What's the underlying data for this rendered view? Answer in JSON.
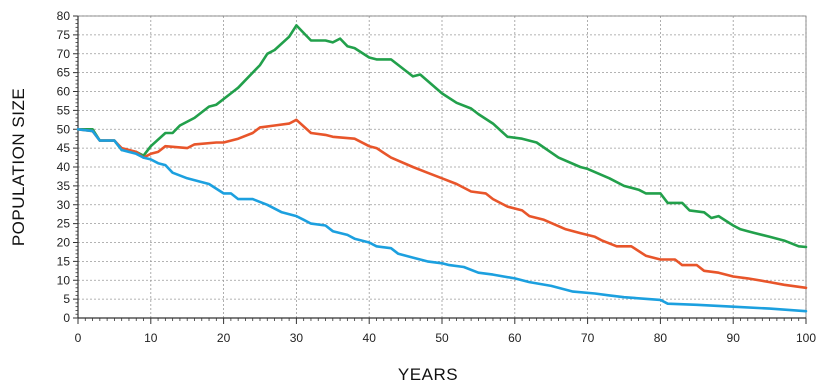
{
  "chart_data": {
    "type": "line",
    "title": "",
    "xlabel": "YEARS",
    "ylabel": "POPULATION SIZE",
    "xlim": [
      0,
      100
    ],
    "ylim": [
      0,
      80
    ],
    "grid": true,
    "x_ticks": [
      0,
      10,
      20,
      30,
      40,
      50,
      60,
      70,
      80,
      90,
      100
    ],
    "y_ticks": [
      0,
      5,
      10,
      15,
      20,
      25,
      30,
      35,
      40,
      45,
      50,
      55,
      60,
      65,
      70,
      75,
      80
    ],
    "x_tick_labels": [
      "0",
      "10",
      "20",
      "30",
      "40",
      "50",
      "60",
      "70",
      "80",
      "90",
      "100"
    ],
    "y_tick_labels": [
      "0",
      "5",
      "10",
      "15",
      "20",
      "25",
      "30",
      "35",
      "40",
      "45",
      "50",
      "55",
      "60",
      "65",
      "70",
      "75",
      "80"
    ],
    "series": [
      {
        "color": "#22a04b",
        "points": [
          [
            0,
            50
          ],
          [
            2,
            50
          ],
          [
            3,
            47
          ],
          [
            5,
            47
          ],
          [
            6,
            44.5
          ],
          [
            8,
            44
          ],
          [
            9,
            43
          ],
          [
            10,
            45.5
          ],
          [
            12,
            49
          ],
          [
            13,
            49
          ],
          [
            14,
            51
          ],
          [
            16,
            53
          ],
          [
            18,
            56
          ],
          [
            19,
            56.5
          ],
          [
            21,
            59.5
          ],
          [
            22,
            61
          ],
          [
            23,
            63
          ],
          [
            25,
            67
          ],
          [
            26,
            70
          ],
          [
            27,
            71
          ],
          [
            29,
            74.5
          ],
          [
            30,
            77.5
          ],
          [
            31,
            75.5
          ],
          [
            32,
            73.5
          ],
          [
            34,
            73.5
          ],
          [
            35,
            73
          ],
          [
            36,
            74
          ],
          [
            37,
            72
          ],
          [
            38,
            71.5
          ],
          [
            40,
            69
          ],
          [
            41,
            68.5
          ],
          [
            43,
            68.5
          ],
          [
            46,
            64
          ],
          [
            47,
            64.5
          ],
          [
            50,
            59.5
          ],
          [
            52,
            57
          ],
          [
            54,
            55.5
          ],
          [
            55,
            54
          ],
          [
            57,
            51.5
          ],
          [
            59,
            48
          ],
          [
            61,
            47.5
          ],
          [
            63,
            46.5
          ],
          [
            66,
            42.5
          ],
          [
            69,
            40
          ],
          [
            70,
            39.5
          ],
          [
            73,
            37
          ],
          [
            75,
            35
          ],
          [
            77,
            34
          ],
          [
            78,
            33
          ],
          [
            80,
            33
          ],
          [
            81,
            30.5
          ],
          [
            83,
            30.5
          ],
          [
            84,
            28.5
          ],
          [
            86,
            28
          ],
          [
            87,
            26.5
          ],
          [
            88,
            27
          ],
          [
            90,
            24.5
          ],
          [
            91,
            23.5
          ],
          [
            92,
            23
          ],
          [
            93,
            22.5
          ],
          [
            95,
            21.5
          ],
          [
            97,
            20.5
          ],
          [
            99,
            19
          ],
          [
            100,
            18.8
          ]
        ]
      },
      {
        "color": "#e8552a",
        "points": [
          [
            0,
            50
          ],
          [
            2,
            49.5
          ],
          [
            3,
            47
          ],
          [
            5,
            47
          ],
          [
            6,
            45
          ],
          [
            8,
            44
          ],
          [
            9,
            42.5
          ],
          [
            10,
            43.5
          ],
          [
            11,
            44
          ],
          [
            12,
            45.5
          ],
          [
            15,
            45
          ],
          [
            16,
            46
          ],
          [
            19,
            46.5
          ],
          [
            20,
            46.5
          ],
          [
            22,
            47.5
          ],
          [
            24,
            49
          ],
          [
            25,
            50.5
          ],
          [
            27,
            51
          ],
          [
            29,
            51.5
          ],
          [
            30,
            52.5
          ],
          [
            32,
            49
          ],
          [
            34,
            48.5
          ],
          [
            35,
            48
          ],
          [
            38,
            47.5
          ],
          [
            40,
            45.5
          ],
          [
            41,
            45
          ],
          [
            43,
            42.5
          ],
          [
            46,
            40
          ],
          [
            48,
            38.5
          ],
          [
            50,
            37
          ],
          [
            52,
            35.5
          ],
          [
            54,
            33.5
          ],
          [
            56,
            33
          ],
          [
            57,
            31.5
          ],
          [
            59,
            29.5
          ],
          [
            61,
            28.5
          ],
          [
            62,
            27
          ],
          [
            64,
            26
          ],
          [
            67,
            23.5
          ],
          [
            69,
            22.5
          ],
          [
            71,
            21.5
          ],
          [
            72,
            20.5
          ],
          [
            74,
            19
          ],
          [
            76,
            19
          ],
          [
            78,
            16.5
          ],
          [
            80,
            15.5
          ],
          [
            82,
            15.5
          ],
          [
            83,
            14
          ],
          [
            85,
            14
          ],
          [
            86,
            12.5
          ],
          [
            88,
            12
          ],
          [
            90,
            11
          ],
          [
            92,
            10.5
          ],
          [
            95,
            9.5
          ],
          [
            97,
            8.8
          ],
          [
            100,
            8
          ]
        ]
      },
      {
        "color": "#1ca0df",
        "points": [
          [
            0,
            50
          ],
          [
            2,
            49.5
          ],
          [
            3,
            47
          ],
          [
            5,
            47
          ],
          [
            6,
            44.5
          ],
          [
            8,
            43.5
          ],
          [
            9,
            42.5
          ],
          [
            10,
            42
          ],
          [
            11,
            41
          ],
          [
            12,
            40.5
          ],
          [
            13,
            38.5
          ],
          [
            15,
            37
          ],
          [
            17,
            36
          ],
          [
            18,
            35.5
          ],
          [
            20,
            33
          ],
          [
            21,
            33
          ],
          [
            22,
            31.5
          ],
          [
            24,
            31.5
          ],
          [
            26,
            30
          ],
          [
            28,
            28
          ],
          [
            30,
            27
          ],
          [
            31,
            26
          ],
          [
            32,
            25
          ],
          [
            34,
            24.5
          ],
          [
            35,
            23
          ],
          [
            37,
            22
          ],
          [
            38,
            21
          ],
          [
            40,
            20
          ],
          [
            41,
            19
          ],
          [
            43,
            18.5
          ],
          [
            44,
            17
          ],
          [
            46,
            16
          ],
          [
            48,
            15
          ],
          [
            50,
            14.5
          ],
          [
            51,
            14
          ],
          [
            53,
            13.5
          ],
          [
            55,
            12
          ],
          [
            57,
            11.5
          ],
          [
            60,
            10.5
          ],
          [
            62,
            9.5
          ],
          [
            65,
            8.5
          ],
          [
            68,
            7
          ],
          [
            71,
            6.5
          ],
          [
            73,
            6
          ],
          [
            75,
            5.5
          ],
          [
            80,
            4.8
          ],
          [
            81,
            3.8
          ],
          [
            85,
            3.5
          ],
          [
            90,
            3
          ],
          [
            95,
            2.5
          ],
          [
            100,
            1.8
          ]
        ]
      }
    ]
  }
}
